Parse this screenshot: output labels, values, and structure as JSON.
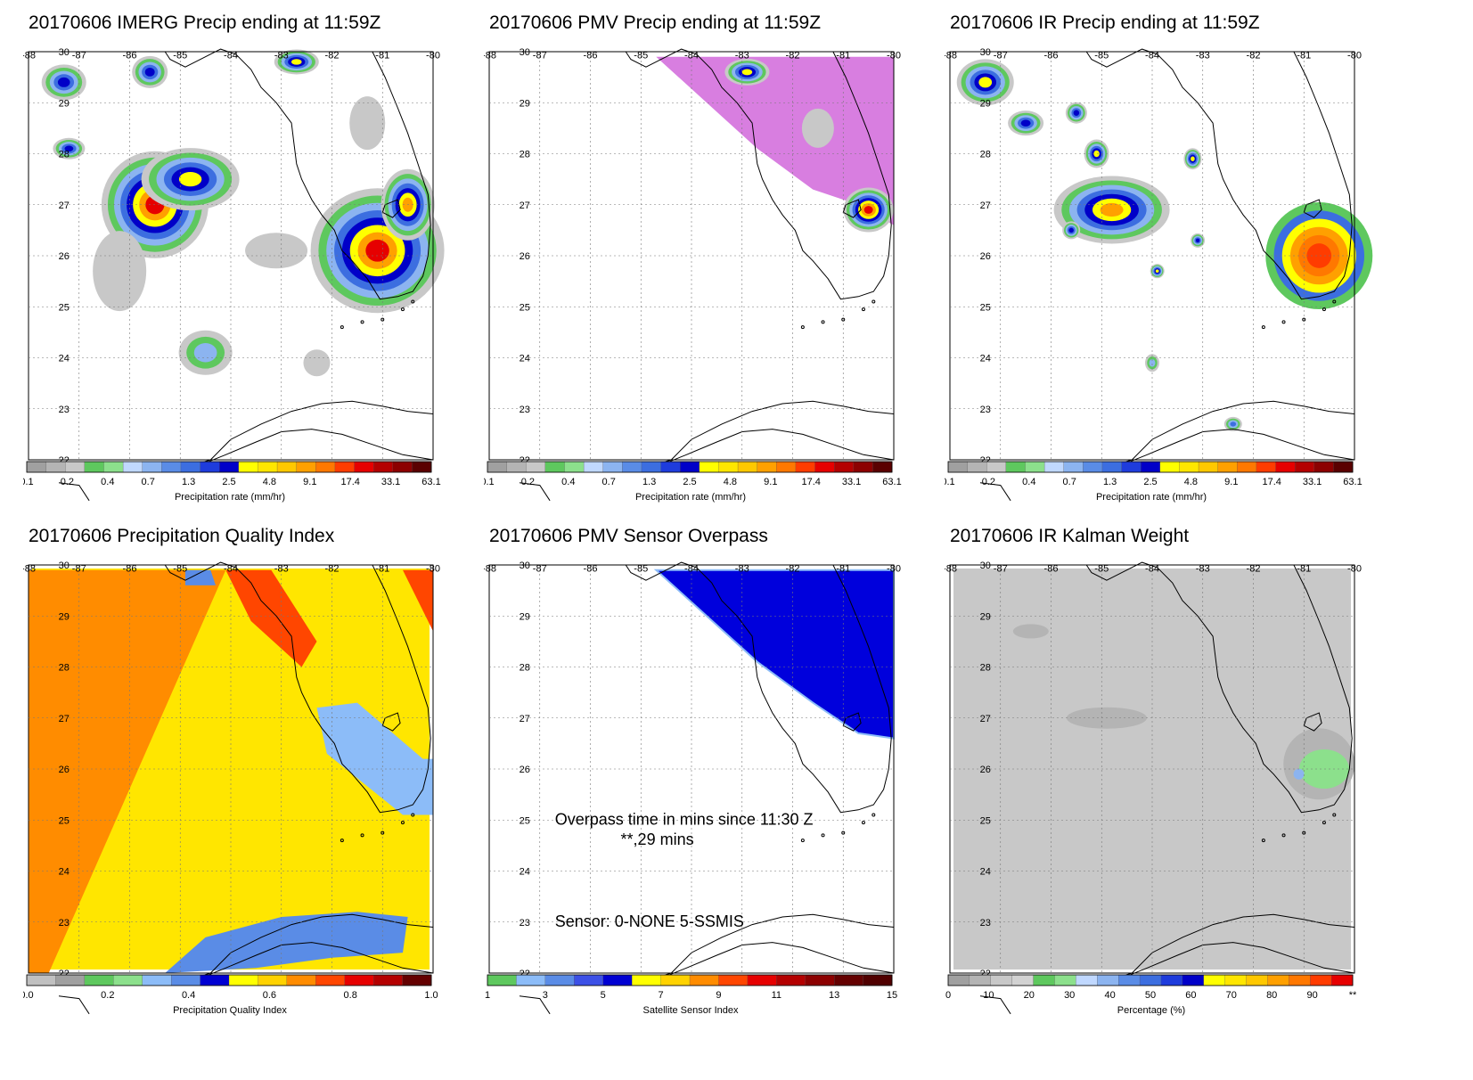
{
  "panels": [
    {
      "title": "20170606 IMERG Precip ending at 11:59Z",
      "colorbar_label": "Precipitation rate (mm/hr)",
      "colorbar_ticks": [
        "0.1",
        "0.2",
        "0.4",
        "0.7",
        "1.3",
        "2.5",
        "4.8",
        "9.1",
        "17.4",
        "33.1",
        "63.1"
      ]
    },
    {
      "title": "20170606 PMV Precip ending at 11:59Z",
      "colorbar_label": "Precipitation rate (mm/hr)",
      "colorbar_ticks": [
        "0.1",
        "0.2",
        "0.4",
        "0.7",
        "1.3",
        "2.5",
        "4.8",
        "9.1",
        "17.4",
        "33.1",
        "63.1"
      ]
    },
    {
      "title": "20170606 IR Precip ending at 11:59Z",
      "colorbar_label": "Precipitation rate (mm/hr)",
      "colorbar_ticks": [
        "0.1",
        "0.2",
        "0.4",
        "0.7",
        "1.3",
        "2.5",
        "4.8",
        "9.1",
        "17.4",
        "33.1",
        "63.1"
      ]
    },
    {
      "title": "20170606 Precipitation Quality Index",
      "colorbar_label": "Precipitation Quality Index",
      "colorbar_ticks": [
        "0.0",
        "0.2",
        "0.4",
        "0.6",
        "0.8",
        "1.0"
      ]
    },
    {
      "title": "20170606 PMV Sensor Overpass",
      "colorbar_label": "Satellite Sensor Index",
      "colorbar_ticks": [
        "1",
        "3",
        "5",
        "7",
        "9",
        "11",
        "13",
        "15"
      ],
      "overpass_text": "Overpass time in mins since 11:30 Z",
      "overpass_value": "**,29 mins",
      "sensor_text": "Sensor:   0-NONE  5-SSMIS"
    },
    {
      "title": "20170606 IR Kalman Weight",
      "colorbar_label": "Percentage (%)",
      "colorbar_ticks": [
        "0",
        "10",
        "20",
        "30",
        "40",
        "50",
        "60",
        "70",
        "80",
        "90",
        "**"
      ]
    }
  ],
  "map_axes": {
    "lon_labels": [
      "-88",
      "-87",
      "-86",
      "-85",
      "-84",
      "-83",
      "-82",
      "-81",
      "-80"
    ],
    "lat_labels": [
      "30",
      "29",
      "28",
      "27",
      "26",
      "25",
      "24",
      "23",
      "22"
    ]
  },
  "colors": {
    "precip_scale": [
      "#a0a0a0",
      "#b4b4b4",
      "#c8c8c8",
      "#5ec85e",
      "#8ce08c",
      "#c0d8ff",
      "#8cb4f0",
      "#5a8ce6",
      "#3c6ee0",
      "#1e3cdc",
      "#0000c8",
      "#ffff00",
      "#ffe600",
      "#ffc800",
      "#ffa000",
      "#ff7800",
      "#ff3c00",
      "#e60000",
      "#b40000",
      "#8c0000",
      "#5a0000"
    ],
    "pqi_scale": [
      "#c0c0c0",
      "#a0a0a0",
      "#5ec85e",
      "#8ce08c",
      "#8cbcf8",
      "#5a8ce6",
      "#0000d2",
      "#ffff00",
      "#ffd200",
      "#ff8c00",
      "#ff4600",
      "#e60000",
      "#b40000",
      "#640000"
    ],
    "sensor_scale": [
      "#5ec85e",
      "#8cbcf8",
      "#5a8ce6",
      "#3c50e6",
      "#0000d2",
      "#ffff00",
      "#ffd200",
      "#ff8c00",
      "#ff4600",
      "#e60000",
      "#b40000",
      "#8c0000",
      "#640000",
      "#500000"
    ],
    "kalman_scale": [
      "#a0a0a0",
      "#b4b4b4",
      "#c8c8c8",
      "#d2d2d2",
      "#5ec85e",
      "#8ce08c",
      "#c0d8ff",
      "#8cb4f0",
      "#5a8ce6",
      "#3c6ee0",
      "#1e3cdc",
      "#0000c8",
      "#ffff00",
      "#ffe600",
      "#ffc800",
      "#ffa000",
      "#ff7800",
      "#ff3c00",
      "#e60000"
    ],
    "pmv_coverage": "#d87ee0",
    "overpass_blue": "#0000dc",
    "pqi_orange": "#ff8c00",
    "pqi_yellow": "#ffe600",
    "kalman_gray": "#c8c8c8"
  }
}
